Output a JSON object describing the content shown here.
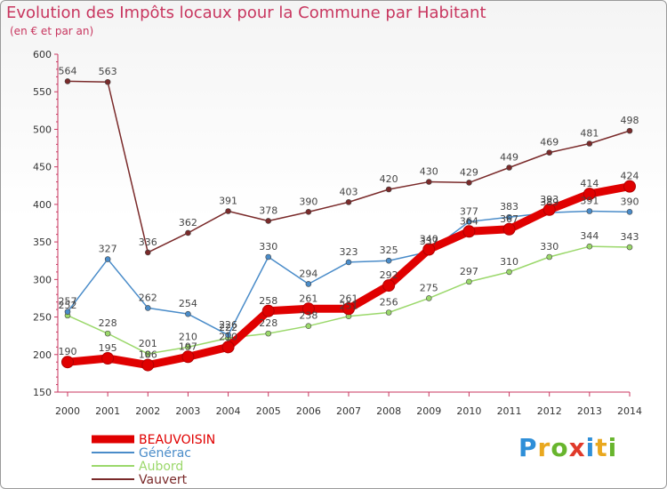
{
  "header": {
    "title": "Evolution des Impôts locaux pour la Commune par Habitant",
    "subtitle": "(en € et par an)"
  },
  "brand": {
    "letters": [
      "P",
      "r",
      "o",
      "x",
      "i",
      "t",
      "i"
    ],
    "colors": [
      "#2f8fd8",
      "#e9a81f",
      "#68b52d",
      "#e03a2a",
      "#2f8fd8",
      "#e9a81f",
      "#68b52d"
    ]
  },
  "chart_data": {
    "type": "line",
    "title": "Evolution des Impôts locaux pour la Commune par Habitant",
    "subtitle": "(en € et par an)",
    "x": [
      "2000",
      "2001",
      "2002",
      "2003",
      "2004",
      "2005",
      "2006",
      "2007",
      "2008",
      "2009",
      "2010",
      "2011",
      "2012",
      "2013",
      "2014"
    ],
    "ylim": [
      150,
      600
    ],
    "yticks": [
      "150",
      "200",
      "250",
      "300",
      "350",
      "400",
      "450",
      "500",
      "550",
      "600"
    ],
    "grid": false,
    "legend_position": "bottom-left",
    "series": [
      {
        "name": "BEAUVOISIN",
        "color": "#e00000",
        "values": [
          190,
          195,
          186,
          197,
          210,
          258,
          261,
          261,
          292,
          340,
          364,
          367,
          393,
          414,
          424
        ],
        "labels": [
          "190",
          "195",
          "186",
          "197",
          "210",
          "258",
          "261",
          "261",
          "292",
          "340",
          "364",
          "367",
          "393",
          "414",
          "424"
        ]
      },
      {
        "name": "Générac",
        "color": "#4a8cc9",
        "values": [
          257,
          327,
          262,
          254,
          226,
          330,
          294,
          323,
          325,
          337,
          377,
          383,
          389,
          391,
          390
        ],
        "labels": [
          "257",
          "327",
          "262",
          "254",
          "226",
          "330",
          "294",
          "323",
          "325",
          "337",
          "377",
          "383",
          "389",
          "391",
          "390"
        ]
      },
      {
        "name": "Aubord",
        "color": "#9bd86b",
        "values": [
          252,
          228,
          201,
          210,
          222,
          228,
          238,
          251,
          256,
          275,
          297,
          310,
          330,
          344,
          343
        ],
        "labels": [
          "252",
          "228",
          "201",
          "210",
          "222",
          "228",
          "238",
          "251",
          "256",
          "275",
          "297",
          "310",
          "330",
          "344",
          "343"
        ]
      },
      {
        "name": "Vauvert",
        "color": "#7a2a2a",
        "values": [
          564,
          563,
          336,
          362,
          391,
          378,
          390,
          403,
          420,
          430,
          429,
          449,
          469,
          481,
          498
        ],
        "labels": [
          "564",
          "563",
          "336",
          "362",
          "391",
          "378",
          "390",
          "403",
          "420",
          "430",
          "429",
          "449",
          "469",
          "481",
          "498"
        ]
      }
    ]
  }
}
